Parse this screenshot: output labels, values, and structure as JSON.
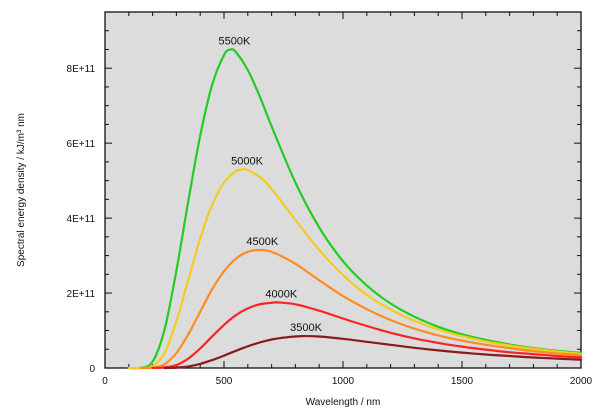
{
  "chart_data": {
    "type": "line",
    "title": "",
    "xlabel": "Wavelength / nm",
    "ylabel": "Spectral energy density / kJ/m³ nm",
    "xlim": [
      0,
      2000
    ],
    "ylim": [
      0,
      950000000000
    ],
    "x_ticks": [
      0,
      500,
      1000,
      1500,
      2000
    ],
    "x_tick_labels": [
      "0",
      "500",
      "1000",
      "1500",
      "2000"
    ],
    "y_ticks": [
      0,
      200000000000,
      400000000000,
      600000000000,
      800000000000
    ],
    "y_tick_labels": [
      "0",
      "2E+11",
      "4E+11",
      "6E+11",
      "8E+11"
    ],
    "grid": false,
    "background": "#dcdcdc",
    "series": [
      {
        "name": "5500K",
        "color": "#22cc22",
        "x": [
          100,
          150,
          200,
          250,
          300,
          350,
          400,
          450,
          500,
          527,
          550,
          600,
          650,
          700,
          800,
          900,
          1000,
          1100,
          1200,
          1300,
          1400,
          1500,
          1600,
          1700,
          1800,
          1900,
          2000
        ],
        "y": [
          0,
          500000000,
          17000000000,
          102000000000,
          260000000000,
          445000000000,
          620000000000,
          755000000000,
          835000000000,
          850000000000,
          843000000000,
          795000000000,
          725000000000,
          645000000000,
          495000000000,
          375000000000,
          285000000000,
          220000000000,
          172000000000,
          137000000000,
          110000000000,
          90000000000,
          75000000000,
          63000000000,
          53000000000,
          46000000000,
          40000000000
        ]
      },
      {
        "name": "5000K",
        "color": "#f2cc22",
        "x": [
          100,
          150,
          200,
          250,
          300,
          350,
          400,
          450,
          500,
          550,
          580,
          600,
          650,
          700,
          800,
          900,
          1000,
          1100,
          1200,
          1300,
          1400,
          1500,
          1600,
          1700,
          1800,
          1900,
          2000
        ],
        "y": [
          0,
          100000000,
          5000000000,
          40000000000,
          125000000000,
          235000000000,
          345000000000,
          435000000000,
          495000000000,
          525000000000,
          530000000000,
          528000000000,
          510000000000,
          478000000000,
          395000000000,
          315000000000,
          248000000000,
          195000000000,
          156000000000,
          126000000000,
          103000000000,
          85000000000,
          71000000000,
          60000000000,
          51000000000,
          44000000000,
          38000000000
        ]
      },
      {
        "name": "4500K",
        "color": "#ff8c22",
        "x": [
          150,
          200,
          250,
          300,
          350,
          400,
          450,
          500,
          550,
          600,
          644,
          700,
          800,
          900,
          1000,
          1100,
          1200,
          1300,
          1400,
          1500,
          1600,
          1700,
          1800,
          1900,
          2000
        ],
        "y": [
          0,
          1000000000,
          10000000000,
          40000000000,
          90000000000,
          150000000000,
          210000000000,
          258000000000,
          292000000000,
          310000000000,
          315000000000,
          310000000000,
          278000000000,
          234000000000,
          192000000000,
          157000000000,
          128000000000,
          105000000000,
          87000000000,
          73000000000,
          62000000000,
          53000000000,
          45000000000,
          39000000000,
          34000000000
        ]
      },
      {
        "name": "4000K",
        "color": "#ff2222",
        "x": [
          200,
          250,
          300,
          350,
          400,
          450,
          500,
          550,
          600,
          650,
          700,
          724,
          800,
          900,
          1000,
          1100,
          1200,
          1300,
          1400,
          1500,
          1600,
          1700,
          1800,
          1900,
          2000
        ],
        "y": [
          0,
          1500000000,
          8000000000,
          25000000000,
          52000000000,
          84000000000,
          115000000000,
          141000000000,
          159000000000,
          170000000000,
          174000000000,
          175000000000,
          170000000000,
          153000000000,
          132000000000,
          112000000000,
          94000000000,
          79000000000,
          67000000000,
          57000000000,
          49000000000,
          42000000000,
          37000000000,
          32000000000,
          28000000000
        ]
      },
      {
        "name": "3500K",
        "color": "#8b1a1a",
        "x": [
          250,
          300,
          350,
          400,
          450,
          500,
          550,
          600,
          650,
          700,
          750,
          828,
          900,
          1000,
          1100,
          1200,
          1300,
          1400,
          1500,
          1600,
          1700,
          1800,
          1900,
          2000
        ],
        "y": [
          0,
          1000000000,
          4000000000,
          11000000000,
          21000000000,
          33000000000,
          46000000000,
          58000000000,
          68000000000,
          76000000000,
          81000000000,
          85000000000,
          84000000000,
          78000000000,
          70000000000,
          62000000000,
          54000000000,
          47000000000,
          41000000000,
          36000000000,
          32000000000,
          28000000000,
          25000000000,
          22000000000
        ]
      }
    ]
  }
}
